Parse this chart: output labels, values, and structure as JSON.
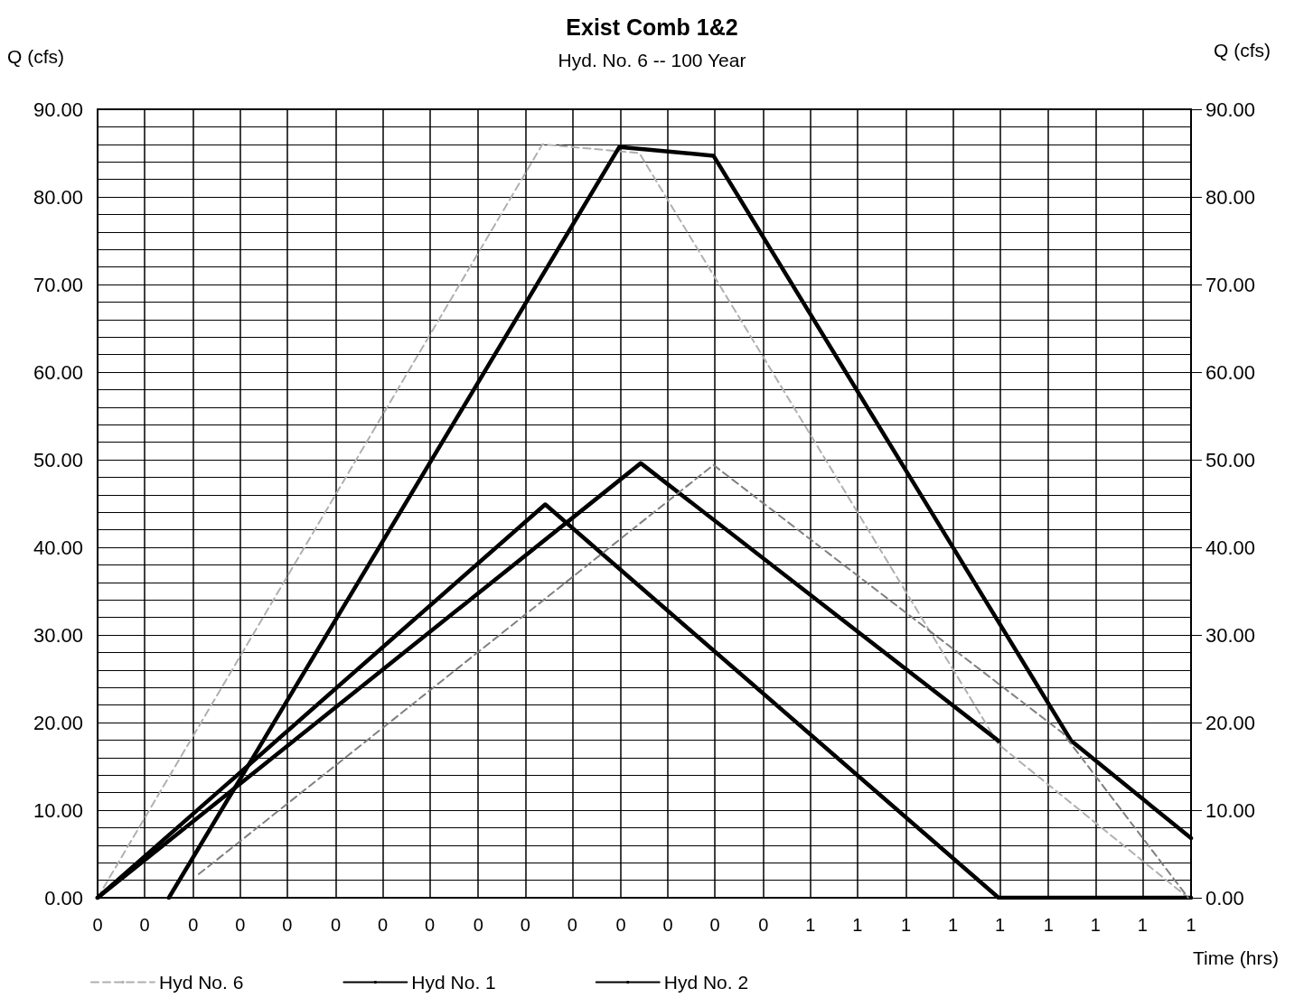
{
  "chart_data": {
    "type": "line",
    "title": "Exist Comb 1&2",
    "subtitle": "Hyd. No. 6 -- 100 Year",
    "xlabel": "Time (hrs)",
    "ylabel": "Q (cfs)",
    "y2label": "Q (cfs)",
    "xlim": [
      0,
      0.767
    ],
    "xticks": [
      {
        "value": 0,
        "label": "0"
      },
      {
        "value": 0.033,
        "label": "0"
      },
      {
        "value": 0.067,
        "label": "0"
      },
      {
        "value": 0.1,
        "label": "0"
      },
      {
        "value": 0.133,
        "label": "0"
      },
      {
        "value": 0.167,
        "label": "0"
      },
      {
        "value": 0.2,
        "label": "0"
      },
      {
        "value": 0.233,
        "label": "0"
      },
      {
        "value": 0.267,
        "label": "0"
      },
      {
        "value": 0.3,
        "label": "0"
      },
      {
        "value": 0.333,
        "label": "0"
      },
      {
        "value": 0.367,
        "label": "0"
      },
      {
        "value": 0.4,
        "label": "0"
      },
      {
        "value": 0.433,
        "label": "0"
      },
      {
        "value": 0.467,
        "label": "0"
      },
      {
        "value": 0.5,
        "label": "1"
      },
      {
        "value": 0.533,
        "label": "1"
      },
      {
        "value": 0.567,
        "label": "1"
      },
      {
        "value": 0.6,
        "label": "1"
      },
      {
        "value": 0.633,
        "label": "1"
      },
      {
        "value": 0.667,
        "label": "1"
      },
      {
        "value": 0.7,
        "label": "1"
      },
      {
        "value": 0.733,
        "label": "1"
      },
      {
        "value": 0.767,
        "label": "1"
      }
    ],
    "ylim": [
      0,
      90
    ],
    "yticks": [
      {
        "value": 0,
        "label": "0.00"
      },
      {
        "value": 2,
        "label": null
      },
      {
        "value": 4,
        "label": null
      },
      {
        "value": 6,
        "label": null
      },
      {
        "value": 8,
        "label": null
      },
      {
        "value": 10,
        "label": "10.00"
      },
      {
        "value": 12,
        "label": null
      },
      {
        "value": 14,
        "label": null
      },
      {
        "value": 16,
        "label": null
      },
      {
        "value": 18,
        "label": null
      },
      {
        "value": 20,
        "label": "20.00"
      },
      {
        "value": 22,
        "label": null
      },
      {
        "value": 24,
        "label": null
      },
      {
        "value": 26,
        "label": null
      },
      {
        "value": 28,
        "label": null
      },
      {
        "value": 30,
        "label": "30.00"
      },
      {
        "value": 32,
        "label": null
      },
      {
        "value": 34,
        "label": null
      },
      {
        "value": 36,
        "label": null
      },
      {
        "value": 38,
        "label": null
      },
      {
        "value": 40,
        "label": "40.00"
      },
      {
        "value": 42,
        "label": null
      },
      {
        "value": 44,
        "label": null
      },
      {
        "value": 46,
        "label": null
      },
      {
        "value": 48,
        "label": null
      },
      {
        "value": 50,
        "label": "50.00"
      },
      {
        "value": 52,
        "label": null
      },
      {
        "value": 54,
        "label": null
      },
      {
        "value": 56,
        "label": null
      },
      {
        "value": 58,
        "label": null
      },
      {
        "value": 60,
        "label": "60.00"
      },
      {
        "value": 62,
        "label": null
      },
      {
        "value": 64,
        "label": null
      },
      {
        "value": 66,
        "label": null
      },
      {
        "value": 68,
        "label": null
      },
      {
        "value": 70,
        "label": "70.00"
      },
      {
        "value": 72,
        "label": null
      },
      {
        "value": 74,
        "label": null
      },
      {
        "value": 76,
        "label": null
      },
      {
        "value": 78,
        "label": null
      },
      {
        "value": 80,
        "label": "80.00"
      },
      {
        "value": 82,
        "label": null
      },
      {
        "value": 84,
        "label": null
      },
      {
        "value": 86,
        "label": null
      },
      {
        "value": 88,
        "label": null
      },
      {
        "value": 90,
        "label": "90.00"
      }
    ],
    "y2lim": [
      0,
      90
    ],
    "y2ticks": [
      {
        "value": 0,
        "label": "0.00"
      },
      {
        "value": 10,
        "label": "10.00"
      },
      {
        "value": 20,
        "label": "20.00"
      },
      {
        "value": 30,
        "label": "30.00"
      },
      {
        "value": 40,
        "label": "40.00"
      },
      {
        "value": 50,
        "label": "50.00"
      },
      {
        "value": 60,
        "label": "60.00"
      },
      {
        "value": 70,
        "label": "70.00"
      },
      {
        "value": 80,
        "label": "80.00"
      },
      {
        "value": 90,
        "label": "90.00"
      }
    ],
    "grid": true,
    "legend": "bottom left",
    "marker": "none",
    "series": [
      {
        "name": "Hyd No. 6",
        "color": "#b0b0b0",
        "line_style": "dashed",
        "x": [
          0,
          0.312,
          0.38,
          0.632,
          0.765
        ],
        "values": [
          0,
          86.0,
          85.0,
          17.5,
          0
        ]
      },
      {
        "name": "Hyd No. 1",
        "color": "#000000",
        "line_style": "solid",
        "x": [
          0,
          0.314,
          0.632,
          0.767
        ],
        "values": [
          0,
          44.9,
          0,
          0
        ]
      },
      {
        "name": "Hyd No. 2",
        "color": "#000000",
        "line_style": "solid",
        "x": [
          0,
          0.381,
          0.632
        ],
        "values": [
          0,
          49.6,
          17.9
        ]
      },
      {
        "color": "#000000",
        "line_style": "solid",
        "x": [
          0.05,
          0.366,
          0.432,
          0.683,
          0.767
        ],
        "values": [
          0,
          85.7,
          84.7,
          17.9,
          6.8
        ]
      },
      {
        "color": "#808080",
        "line_style": "dashed",
        "x": [
          0.071,
          0.432,
          0.677,
          0.765
        ],
        "values": [
          2.7,
          49.4,
          18.8,
          0
        ]
      }
    ]
  }
}
